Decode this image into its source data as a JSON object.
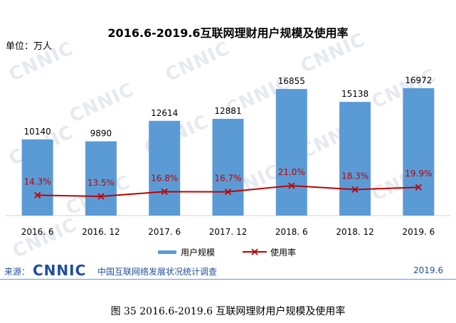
{
  "title": "2016.6-2019.6互联网理财用户规模及使用率",
  "unit_label": "单位：万人",
  "watermark": "CNNIC",
  "chart_data": {
    "type": "bar",
    "categories": [
      "2016. 6",
      "2016. 12",
      "2017. 6",
      "2017. 12",
      "2018. 6",
      "2018. 12",
      "2019. 6"
    ],
    "series": [
      {
        "name": "用户规模",
        "type": "bar",
        "values": [
          10140,
          9890,
          12614,
          12881,
          16855,
          15138,
          16972
        ],
        "labels": [
          "10140",
          "9890",
          "12614",
          "12881",
          "16855",
          "15138",
          "16972"
        ],
        "color": "#5b9bd5"
      },
      {
        "name": "使用率",
        "type": "line",
        "values": [
          14.3,
          13.5,
          16.8,
          16.7,
          21.0,
          18.3,
          19.9
        ],
        "labels": [
          "14.3%",
          "13.5%",
          "16.8%",
          "16.7%",
          "21.0%",
          "18.3%",
          "19.9%"
        ],
        "color": "#c00000"
      }
    ],
    "ylim": [
      0,
      18000
    ],
    "y2lim": [
      0,
      50
    ],
    "grid": false,
    "legend": "bottom"
  },
  "source": {
    "prefix": "来源：",
    "logo": "CNNIC",
    "text": "中国互联网络发展状况统计调查",
    "date": "2019.6"
  },
  "caption": "图  35    2016.6-2019.6 互联网理财用户规模及使用率"
}
